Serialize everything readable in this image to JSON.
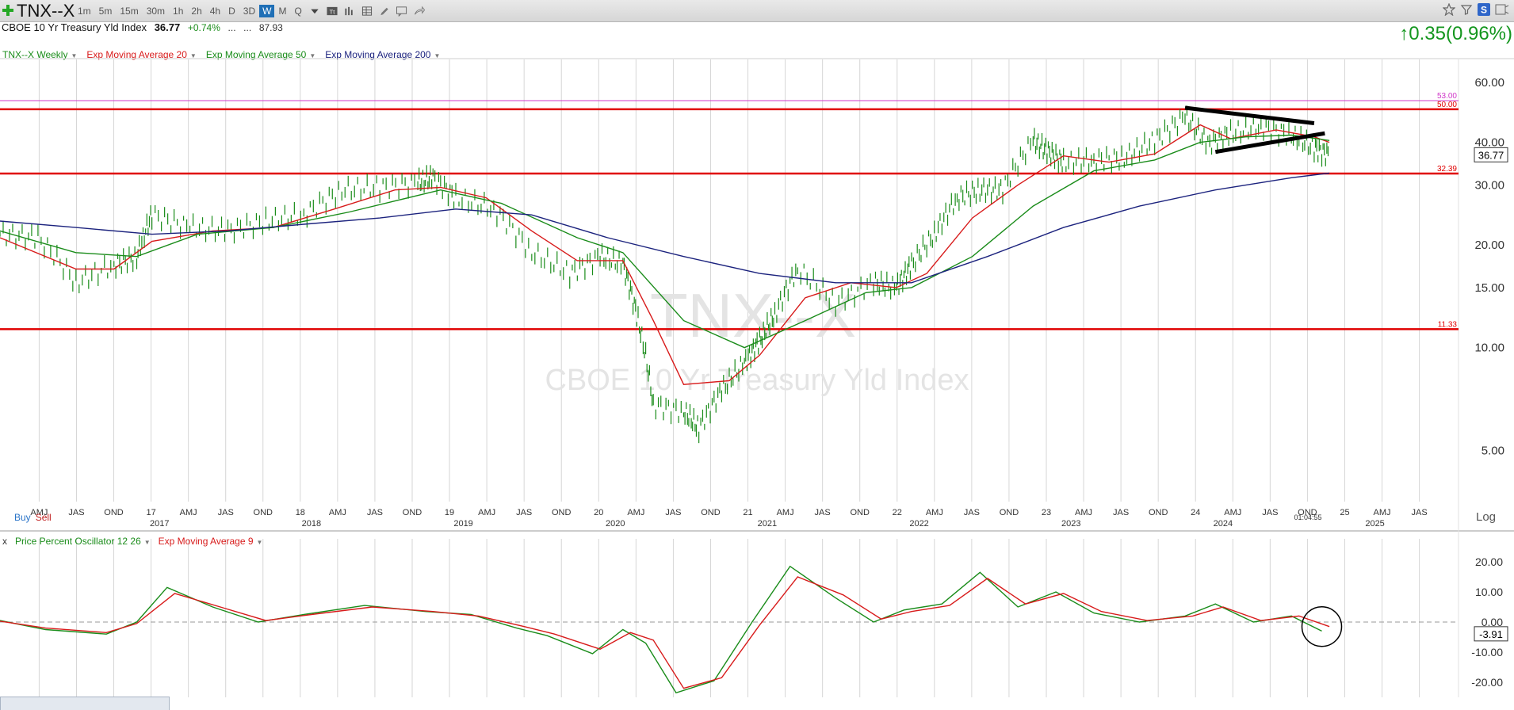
{
  "header": {
    "symbol": "TNX--X",
    "timeframes": [
      "1m",
      "5m",
      "15m",
      "30m",
      "1h",
      "2h",
      "4h",
      "D",
      "3D",
      "W",
      "M",
      "Q"
    ],
    "active_timeframe": "W",
    "name": "CBOE 10 Yr Treasury Yld Index",
    "last": "36.77",
    "change_pct": "+0.74%",
    "ellipsis1": "...",
    "ellipsis2": "...",
    "extra": "87.93",
    "big_change": "0.35(0.96%)",
    "big_change_arrow": "↑"
  },
  "toolbar_icons": [
    "dropdown-caret-icon",
    "tt-icon",
    "bar-chart-icon",
    "grid-icon",
    "pencil-icon",
    "comment-icon",
    "share-arrow-icon"
  ],
  "right_icons": [
    "star-icon",
    "filter-icon",
    "s-badge-icon",
    "scan-icon"
  ],
  "legend_main": [
    {
      "label": "TNX--X Weekly",
      "color": "#1a8c1a"
    },
    {
      "label": "Exp Moving Average 20",
      "color": "#d81b1b"
    },
    {
      "label": "Exp Moving Average 50",
      "color": "#1a8c1a"
    },
    {
      "label": "Exp Moving Average 200",
      "color": "#1c237e"
    }
  ],
  "legend_osc": [
    {
      "label": "x",
      "color": "#333"
    },
    {
      "label": "Price Percent Oscillator 12 26",
      "color": "#1a8c1a"
    },
    {
      "label": "Exp Moving Average 9",
      "color": "#d81b1b"
    }
  ],
  "buy_label": "Buy",
  "sell_label": "Sell",
  "log_label": "Log",
  "watermark": {
    "symbol": "TNX--X",
    "name": "CBOE 10 Yr Treasury Yld Index"
  },
  "price_tag": "36.77",
  "osc_tag": "-3.91",
  "clock": "01:04:55",
  "chart_data": [
    {
      "type": "line",
      "title": "TNX--X Weekly",
      "scale": "log",
      "y_ticks": [
        "60.00",
        "40.00",
        "30.00",
        "20.00",
        "15.00",
        "10.00",
        "5.00"
      ],
      "y_tick_values": [
        60,
        40,
        30,
        20,
        15,
        10,
        5
      ],
      "ylim": [
        4.0,
        70.0
      ],
      "x_month_labels": [
        "AMJ",
        "JAS",
        "OND",
        "17",
        "AMJ",
        "JAS",
        "OND",
        "18",
        "AMJ",
        "JAS",
        "OND",
        "19",
        "AMJ",
        "JAS",
        "OND",
        "20",
        "AMJ",
        "JAS",
        "OND",
        "21",
        "AMJ",
        "JAS",
        "OND",
        "22",
        "AMJ",
        "JAS",
        "OND",
        "23",
        "AMJ",
        "JAS",
        "OND",
        "24",
        "AMJ",
        "JAS",
        "OND",
        "25",
        "AMJ",
        "JAS"
      ],
      "x_year_labels": [
        "2017",
        "2018",
        "2019",
        "2020",
        "2021",
        "2022",
        "2023",
        "2024",
        "2025"
      ],
      "horizontal_lines": [
        {
          "value": 53.0,
          "label": "53.00",
          "color": "#d038c8"
        },
        {
          "value": 50.0,
          "label": "50.00",
          "color": "#e00000"
        },
        {
          "value": 32.39,
          "label": "32.39",
          "color": "#e00000"
        },
        {
          "value": 11.33,
          "label": "11.33",
          "color": "#e00000"
        }
      ],
      "trendlines": [
        {
          "from": [
            2023.8,
            50.5
          ],
          "to": [
            2024.65,
            45.5
          ],
          "color": "#000000"
        },
        {
          "from": [
            2024.0,
            37.5
          ],
          "to": [
            2024.72,
            42.5
          ],
          "color": "#000000"
        }
      ],
      "series": [
        {
          "name": "TNX--X Weekly",
          "color": "#1a8c1a",
          "x": [
            2016.0,
            2016.25,
            2016.5,
            2016.75,
            2016.9,
            2017.0,
            2017.25,
            2017.5,
            2017.75,
            2018.0,
            2018.25,
            2018.5,
            2018.75,
            2018.85,
            2019.0,
            2019.25,
            2019.5,
            2019.75,
            2019.95,
            2020.1,
            2020.2,
            2020.3,
            2020.5,
            2020.6,
            2020.75,
            2020.9,
            2021.0,
            2021.1,
            2021.25,
            2021.5,
            2021.75,
            2021.9,
            2022.0,
            2022.15,
            2022.3,
            2022.45,
            2022.6,
            2022.8,
            2022.9,
            2023.0,
            2023.2,
            2023.4,
            2023.6,
            2023.8,
            2023.95,
            2024.1,
            2024.3,
            2024.5,
            2024.65,
            2024.75
          ],
          "values": [
            21.5,
            21.0,
            15.5,
            17.5,
            18.5,
            24.5,
            22.5,
            22.0,
            23.5,
            24.5,
            29.0,
            29.5,
            30.5,
            31.5,
            27.5,
            25.5,
            19.0,
            16.5,
            18.5,
            17.5,
            12.0,
            6.8,
            6.5,
            5.8,
            7.5,
            9.0,
            10.5,
            12.5,
            17.0,
            13.5,
            15.5,
            15.0,
            17.5,
            21.5,
            27.5,
            29.0,
            29.0,
            40.5,
            37.5,
            35.0,
            35.5,
            36.0,
            40.5,
            47.5,
            39.5,
            42.5,
            44.5,
            42.0,
            38.5,
            36.77
          ]
        },
        {
          "name": "Exp Moving Average 20",
          "color": "#d81b1b",
          "x": [
            2016.0,
            2016.5,
            2016.75,
            2017.0,
            2017.4,
            2017.8,
            2018.2,
            2018.6,
            2018.9,
            2019.2,
            2019.5,
            2019.8,
            2020.1,
            2020.3,
            2020.5,
            2020.8,
            2021.0,
            2021.3,
            2021.6,
            2021.9,
            2022.1,
            2022.4,
            2022.7,
            2023.0,
            2023.3,
            2023.6,
            2023.9,
            2024.1,
            2024.4,
            2024.65,
            2024.75
          ],
          "values": [
            21.0,
            17.0,
            17.0,
            20.5,
            22.0,
            22.5,
            25.5,
            29.0,
            29.5,
            27.5,
            22.0,
            18.0,
            18.0,
            12.0,
            7.8,
            8.0,
            9.5,
            14.0,
            15.5,
            15.0,
            16.5,
            24.0,
            30.0,
            36.5,
            35.0,
            37.0,
            45.0,
            41.0,
            43.5,
            41.5,
            40.0
          ]
        },
        {
          "name": "Exp Moving Average 50",
          "color": "#1a8c1a",
          "x": [
            2016.0,
            2016.5,
            2016.9,
            2017.3,
            2017.8,
            2018.3,
            2018.9,
            2019.3,
            2019.8,
            2020.1,
            2020.5,
            2020.9,
            2021.3,
            2021.7,
            2022.0,
            2022.4,
            2022.8,
            2023.2,
            2023.6,
            2023.9,
            2024.2,
            2024.5,
            2024.75
          ],
          "values": [
            22.0,
            19.0,
            18.5,
            21.5,
            22.5,
            25.0,
            29.0,
            26.5,
            21.0,
            19.0,
            12.0,
            10.0,
            12.0,
            14.5,
            15.0,
            18.5,
            26.0,
            33.0,
            35.5,
            40.0,
            41.5,
            42.0,
            40.5
          ]
        },
        {
          "name": "Exp Moving Average 200",
          "color": "#1c237e",
          "x": [
            2016.0,
            2016.5,
            2017.0,
            2017.5,
            2018.0,
            2018.5,
            2019.0,
            2019.5,
            2020.0,
            2020.5,
            2021.0,
            2021.5,
            2022.0,
            2022.5,
            2023.0,
            2023.5,
            2024.0,
            2024.5,
            2024.75
          ],
          "values": [
            23.5,
            22.5,
            21.5,
            22.0,
            23.0,
            24.0,
            25.5,
            24.5,
            21.0,
            18.5,
            16.5,
            15.5,
            15.5,
            18.5,
            22.5,
            26.0,
            29.0,
            31.5,
            32.5
          ]
        }
      ]
    },
    {
      "type": "line",
      "title": "Price Percent Oscillator 12 26",
      "y_ticks": [
        "20.00",
        "10.00",
        "0.00",
        "-10.00",
        "-20.00"
      ],
      "y_tick_values": [
        20,
        10,
        0,
        -10,
        -20
      ],
      "ylim": [
        -25,
        25
      ],
      "series": [
        {
          "name": "Price Percent Oscillator 12 26",
          "color": "#1a8c1a",
          "x": [
            2016.0,
            2016.3,
            2016.7,
            2016.9,
            2017.1,
            2017.4,
            2017.7,
            2018.0,
            2018.4,
            2018.8,
            2019.1,
            2019.4,
            2019.6,
            2019.9,
            2020.1,
            2020.25,
            2020.45,
            2020.7,
            2020.95,
            2021.2,
            2021.5,
            2021.75,
            2021.95,
            2022.2,
            2022.45,
            2022.7,
            2022.95,
            2023.2,
            2023.5,
            2023.8,
            2024.0,
            2024.25,
            2024.5,
            2024.7
          ],
          "values": [
            0.5,
            -2.5,
            -4.0,
            0.0,
            11.5,
            5.0,
            0.0,
            2.5,
            5.5,
            3.5,
            2.5,
            -2.0,
            -4.5,
            -10.5,
            -2.5,
            -7.0,
            -23.5,
            -19.5,
            0.0,
            18.5,
            8.0,
            0.0,
            4.0,
            6.0,
            16.5,
            5.0,
            10.0,
            3.0,
            0.0,
            2.0,
            6.0,
            0.0,
            2.0,
            -3.0
          ]
        },
        {
          "name": "Exp Moving Average 9",
          "color": "#d81b1b",
          "x": [
            2016.0,
            2016.3,
            2016.7,
            2016.9,
            2017.15,
            2017.45,
            2017.75,
            2018.05,
            2018.45,
            2018.85,
            2019.15,
            2019.45,
            2019.65,
            2019.95,
            2020.15,
            2020.3,
            2020.5,
            2020.75,
            2021.0,
            2021.25,
            2021.55,
            2021.8,
            2022.0,
            2022.25,
            2022.5,
            2022.75,
            2023.0,
            2023.25,
            2023.55,
            2023.85,
            2024.05,
            2024.3,
            2024.55,
            2024.75
          ],
          "values": [
            0.3,
            -2.0,
            -3.5,
            -0.5,
            9.5,
            5.0,
            0.5,
            2.5,
            5.0,
            3.5,
            2.0,
            -1.5,
            -4.0,
            -9.0,
            -3.5,
            -6.0,
            -22.0,
            -18.5,
            -1.0,
            15.0,
            9.0,
            1.0,
            3.5,
            5.5,
            14.5,
            6.0,
            9.5,
            3.5,
            0.5,
            2.0,
            5.0,
            0.5,
            2.0,
            -1.5
          ]
        }
      ]
    }
  ]
}
